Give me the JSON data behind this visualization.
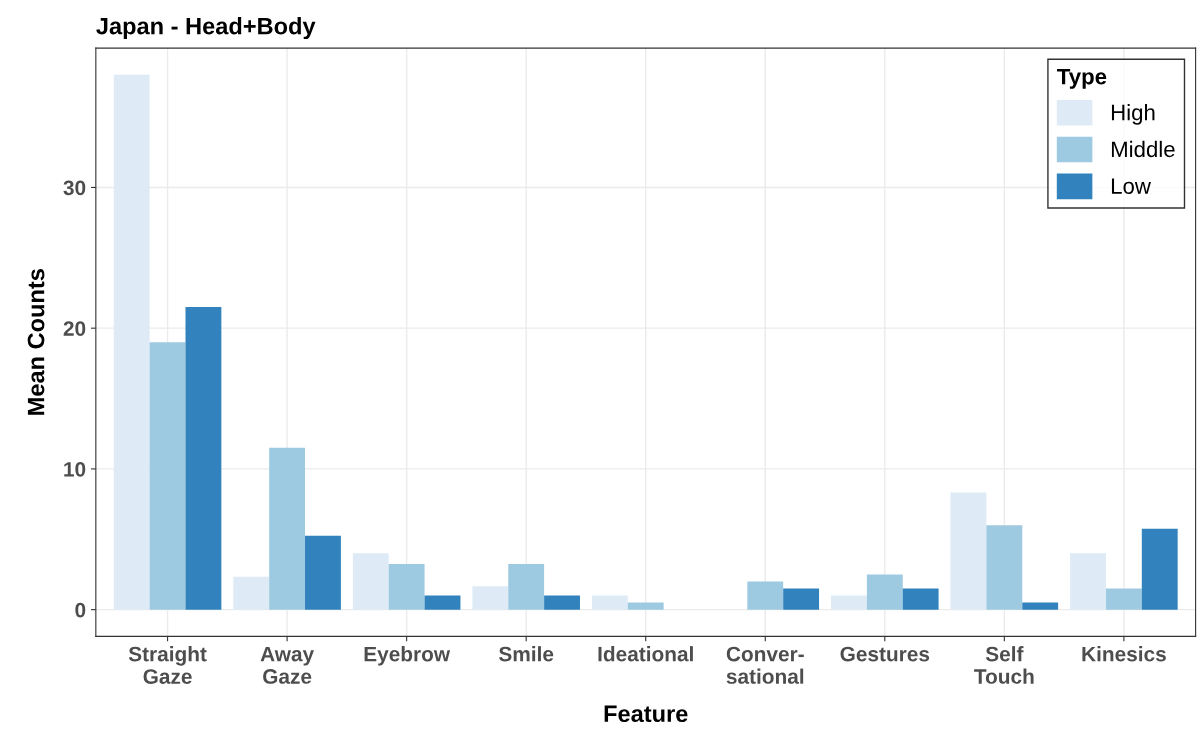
{
  "chart_data": {
    "type": "bar",
    "title": "Japan - Head+Body",
    "xlabel": "Feature",
    "ylabel": "Mean Counts",
    "legend_title": "Type",
    "categories": [
      "Straight\nGaze",
      "Away\nGaze",
      "Eyebrow",
      "Smile",
      "Ideational",
      "Conver-\nsational",
      "Gestures",
      "Self\nTouch",
      "Kinesics"
    ],
    "series": [
      {
        "name": "High",
        "color": "#deebf7",
        "values": [
          38,
          2.33,
          4,
          1.67,
          1,
          0,
          1,
          8.33,
          4
        ]
      },
      {
        "name": "Middle",
        "color": "#9ecae1",
        "values": [
          19,
          11.5,
          3.25,
          3.25,
          0.5,
          2,
          2.5,
          6,
          1.5
        ]
      },
      {
        "name": "Low",
        "color": "#3182bd",
        "values": [
          21.5,
          5.25,
          1,
          1,
          0,
          1.5,
          1.5,
          0.5,
          5.75
        ]
      }
    ],
    "ylim": [
      -1.9,
      39.9
    ],
    "yticks": [
      0,
      10,
      20,
      30
    ],
    "grid": true,
    "legend": "top right"
  }
}
